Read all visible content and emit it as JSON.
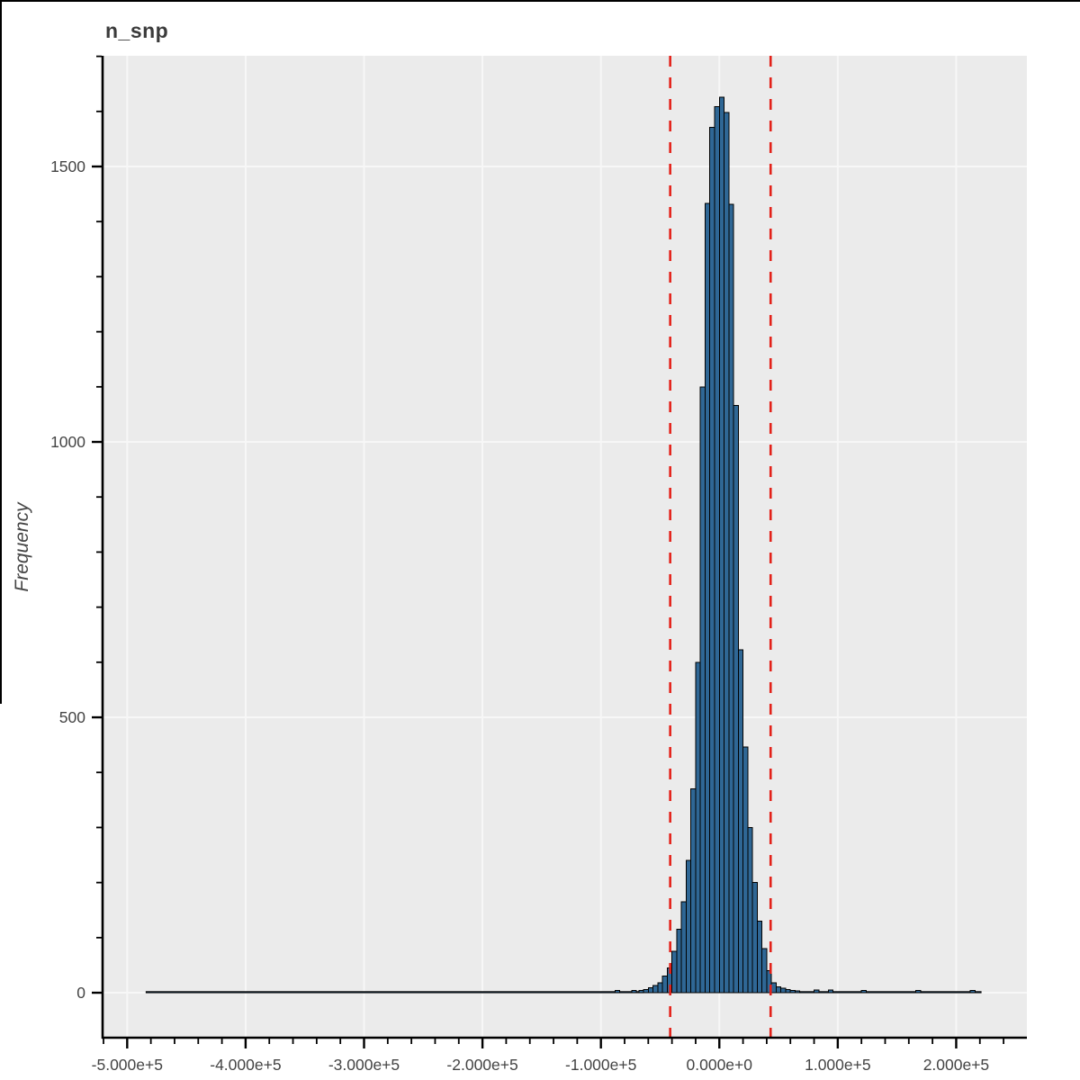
{
  "figure": {
    "title": "n_snp",
    "ylabel": "Frequency"
  },
  "colors": {
    "plot_bg": "#ebebeb",
    "grid": "#f7f7f7",
    "bar_fill": "#2f6795",
    "bar_stroke": "#000000",
    "outlier_line": "#e32119",
    "axis": "#000000",
    "tick_text": "#444444",
    "title_text": "#3b3b3b",
    "window_edge": "#000000"
  },
  "chart_data": {
    "type": "bar",
    "subtype": "histogram",
    "title": "n_snp",
    "xlabel": "",
    "ylabel": "Frequency",
    "grid": true,
    "legend": null,
    "x_domain": [
      -520000,
      259700
    ],
    "y_domain": [
      -80,
      1701
    ],
    "x_ticks": [
      {
        "v": -500000,
        "label": "-5.000e+5"
      },
      {
        "v": -400000,
        "label": "-4.000e+5"
      },
      {
        "v": -300000,
        "label": "-3.000e+5"
      },
      {
        "v": -200000,
        "label": "-2.000e+5"
      },
      {
        "v": -100000,
        "label": "-1.000e+5"
      },
      {
        "v": 0,
        "label": "0.000e+0"
      },
      {
        "v": 100000,
        "label": "1.000e+5"
      },
      {
        "v": 200000,
        "label": "2.000e+5"
      }
    ],
    "x_minor_step": 20000,
    "y_ticks": [
      {
        "v": 0,
        "label": "0"
      },
      {
        "v": 500,
        "label": "500"
      },
      {
        "v": 1000,
        "label": "1000"
      },
      {
        "v": 1500,
        "label": "1500"
      }
    ],
    "y_minor_step": 100,
    "bin_width": 4000,
    "bins": [
      [
        -68000,
        4
      ],
      [
        -64000,
        6
      ],
      [
        -60000,
        9
      ],
      [
        -56000,
        13
      ],
      [
        -52000,
        18
      ],
      [
        -48000,
        30
      ],
      [
        -44000,
        45
      ],
      [
        -40000,
        75
      ],
      [
        -36000,
        115
      ],
      [
        -32000,
        165
      ],
      [
        -28000,
        240
      ],
      [
        -24000,
        370
      ],
      [
        -20000,
        600
      ],
      [
        -16000,
        1100
      ],
      [
        -12000,
        1433
      ],
      [
        -8000,
        1571
      ],
      [
        -4000,
        1609
      ],
      [
        0,
        1626
      ],
      [
        4000,
        1598
      ],
      [
        8000,
        1431
      ],
      [
        12000,
        1066
      ],
      [
        16000,
        623
      ],
      [
        20000,
        446
      ],
      [
        24000,
        300
      ],
      [
        28000,
        200
      ],
      [
        32000,
        130
      ],
      [
        36000,
        80
      ],
      [
        40000,
        40
      ],
      [
        44000,
        18
      ],
      [
        48000,
        11
      ],
      [
        52000,
        8
      ],
      [
        56000,
        6
      ],
      [
        60000,
        4
      ],
      [
        64000,
        3
      ],
      [
        -88000,
        4
      ],
      [
        -74000,
        4
      ],
      [
        80000,
        5
      ],
      [
        92000,
        5
      ],
      [
        120000,
        4
      ],
      [
        166000,
        4
      ],
      [
        212000,
        4
      ]
    ],
    "tail_segments": [
      {
        "x0": -484000,
        "x1": -64000,
        "n": 2
      },
      {
        "x0": 68000,
        "x1": 221000,
        "n": 2
      }
    ],
    "outlier_lines": [
      -41500,
      43300
    ]
  }
}
